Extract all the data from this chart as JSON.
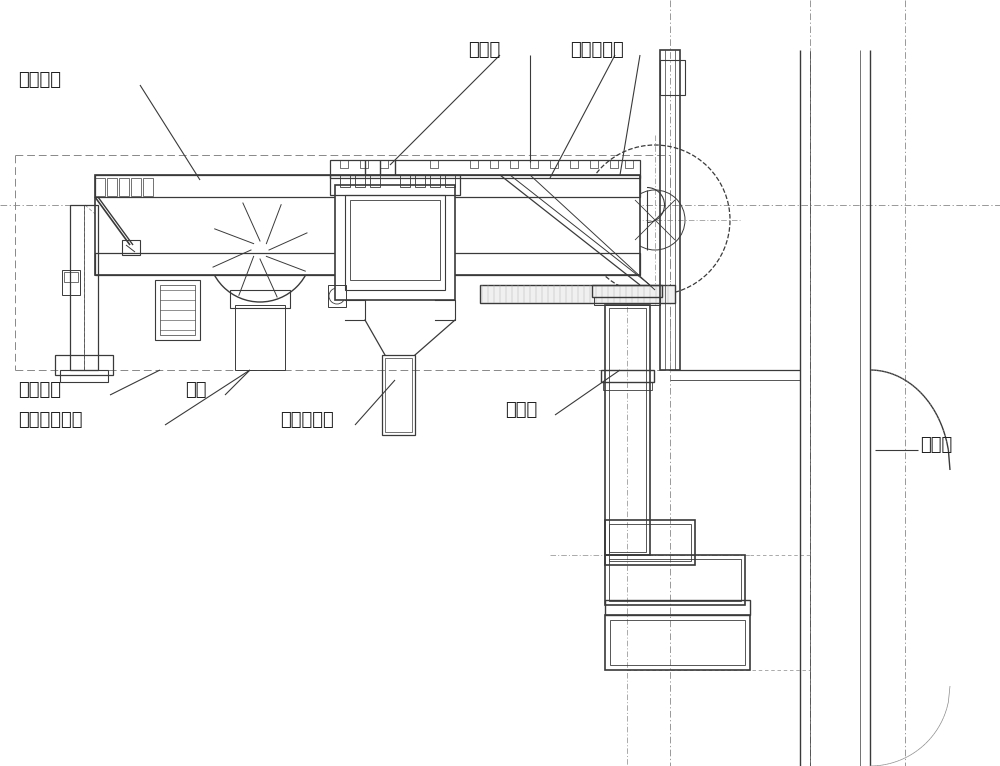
{
  "bg_color": "#ffffff",
  "lc": "#3a3a3a",
  "dc": "#888888",
  "lc2": "#555555",
  "figsize": [
    10.0,
    7.66
  ],
  "dpi": 100,
  "labels": {
    "housing": "装置外壳",
    "vibrator": "振打器",
    "camera": "高清摄像头",
    "main_control": "主控单元",
    "fan": "风机",
    "high_pressure": "高压冲洗单元",
    "sewage_pipe": "污水排水管",
    "side_chute": "副溜管",
    "main_chute": "主溜管"
  }
}
